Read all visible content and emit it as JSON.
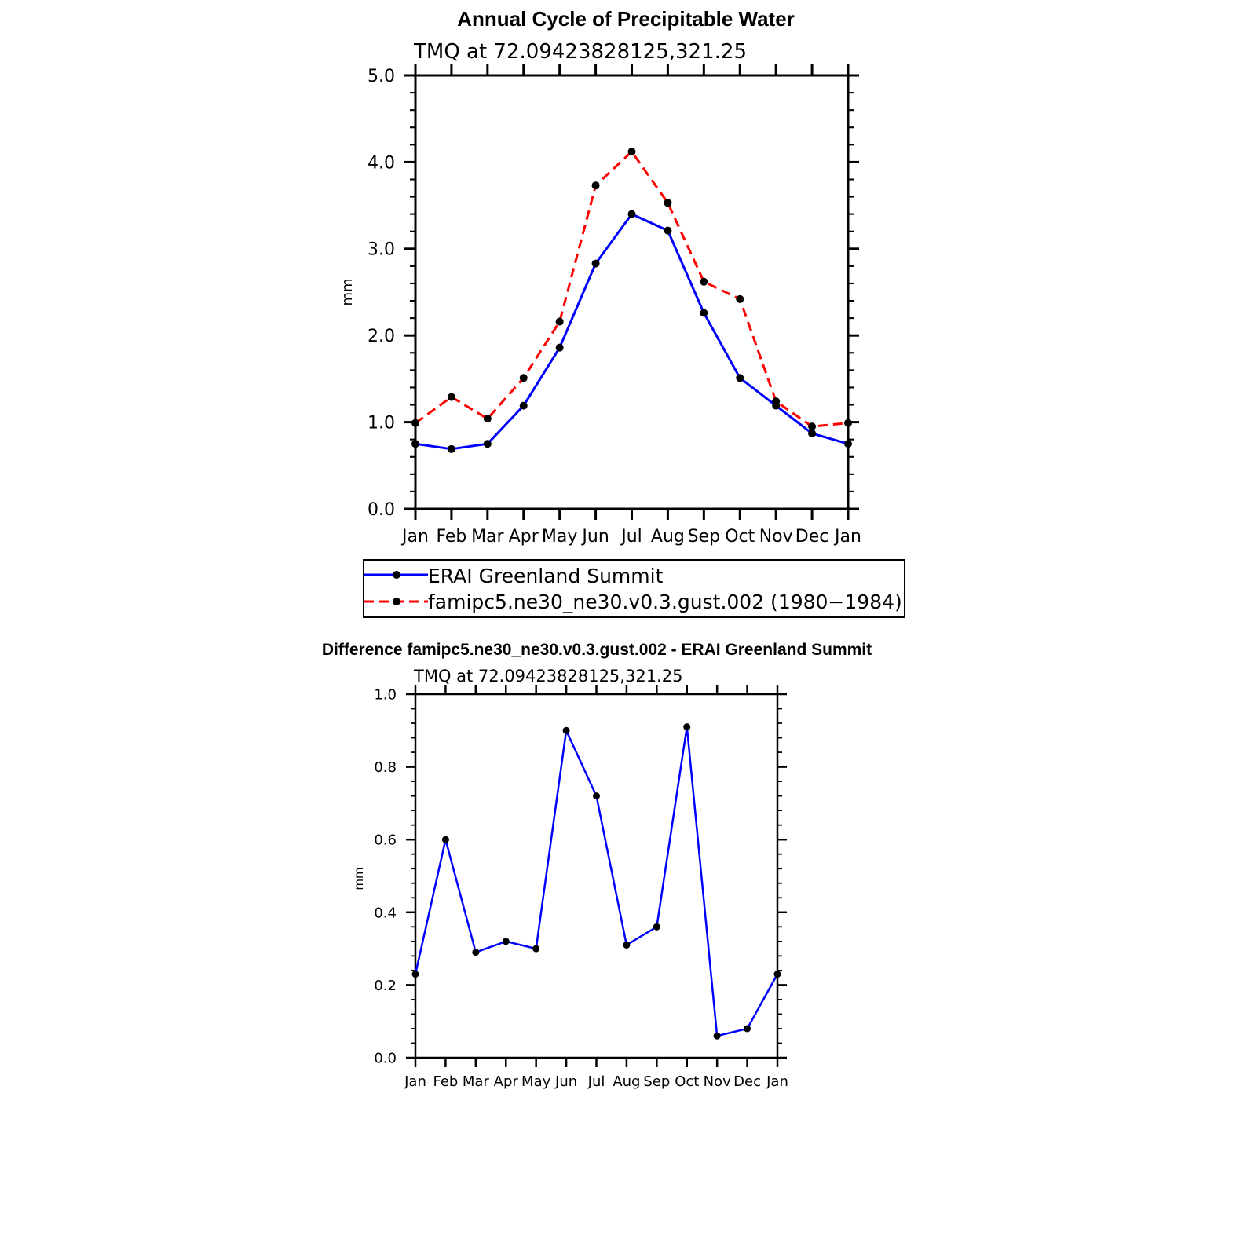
{
  "colors": {
    "axis": "#000000",
    "marker": "#000000",
    "erai_line": "#0000ff",
    "model_line": "#ff0000",
    "background": "#ffffff"
  },
  "chart_data": [
    {
      "type": "line",
      "title": "Annual Cycle of Precipitable Water",
      "subtitle": "TMQ at 72.09423828125,321.25",
      "xlabel": "",
      "ylabel": "mm",
      "categories": [
        "Jan",
        "Feb",
        "Mar",
        "Apr",
        "May",
        "Jun",
        "Jul",
        "Aug",
        "Sep",
        "Oct",
        "Nov",
        "Dec",
        "Jan"
      ],
      "ylim": [
        0,
        5
      ],
      "yticks": [
        "0.0",
        "1.0",
        "2.0",
        "3.0",
        "4.0",
        "5.0"
      ],
      "grid": false,
      "series": [
        {
          "name": "ERAI Greenland Summit",
          "style": "solid",
          "values": [
            0.75,
            0.69,
            0.75,
            1.19,
            1.86,
            2.83,
            3.4,
            3.21,
            2.26,
            1.51,
            1.19,
            0.87,
            0.75
          ]
        },
        {
          "name": "famipc5.ne30_ne30.v0.3.gust.002 (1980−1984)",
          "style": "dashed",
          "values": [
            0.99,
            1.29,
            1.04,
            1.51,
            2.16,
            3.73,
            4.12,
            3.53,
            2.62,
            2.42,
            1.24,
            0.95,
            0.99
          ]
        }
      ],
      "legend": "below"
    },
    {
      "type": "line",
      "title": "Difference famipc5.ne30_ne30.v0.3.gust.002 - ERAI Greenland Summit",
      "subtitle": "TMQ at 72.09423828125,321.25",
      "xlabel": "",
      "ylabel": "mm",
      "categories": [
        "Jan",
        "Feb",
        "Mar",
        "Apr",
        "May",
        "Jun",
        "Jul",
        "Aug",
        "Sep",
        "Oct",
        "Nov",
        "Dec",
        "Jan"
      ],
      "ylim": [
        0,
        1
      ],
      "yticks": [
        "0.0",
        "0.2",
        "0.4",
        "0.6",
        "0.8",
        "1.0"
      ],
      "grid": false,
      "series": [
        {
          "name": "Difference",
          "style": "solid",
          "values": [
            0.23,
            0.6,
            0.29,
            0.32,
            0.3,
            0.9,
            0.72,
            0.31,
            0.36,
            0.91,
            0.06,
            0.08,
            0.23
          ]
        }
      ]
    }
  ]
}
